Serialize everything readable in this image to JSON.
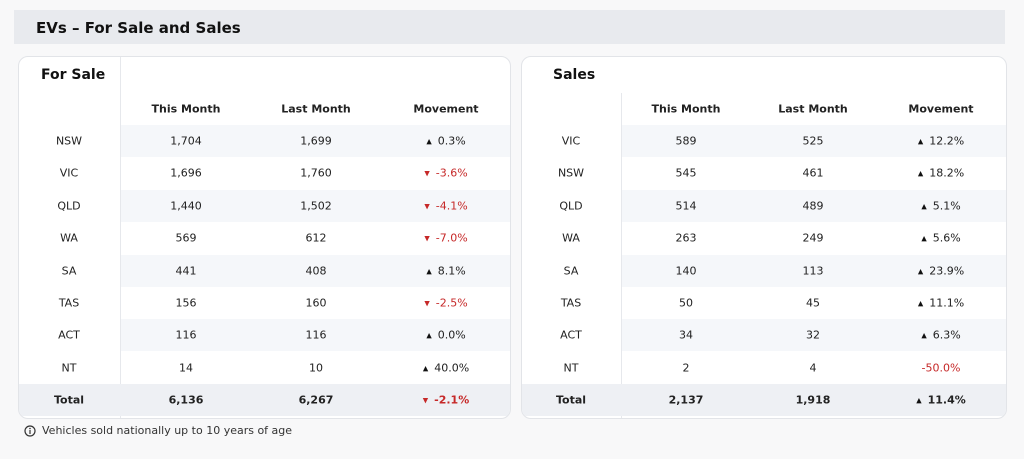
{
  "header": {
    "title": "EVs – For Sale and Sales"
  },
  "tables": [
    {
      "title": "For Sale",
      "columns": [
        "This Month",
        "Last Month",
        "Movement"
      ],
      "rows": [
        [
          "NSW",
          "1,704",
          "1,699",
          "0.3%"
        ],
        [
          "VIC",
          "1,696",
          "1,760",
          "-3.6%"
        ],
        [
          "QLD",
          "1,440",
          "1,502",
          "-4.1%"
        ],
        [
          "WA",
          "569",
          "612",
          "-7.0%"
        ],
        [
          "SA",
          "441",
          "408",
          "8.1%"
        ],
        [
          "TAS",
          "156",
          "160",
          "-2.5%"
        ],
        [
          "ACT",
          "116",
          "116",
          "0.0%"
        ],
        [
          "NT",
          "14",
          "10",
          "40.0%"
        ]
      ],
      "trends": [
        "up",
        "down",
        "down",
        "down",
        "up",
        "down",
        "up",
        "up"
      ],
      "total": [
        "Total",
        "6,136",
        "6,267",
        "-2.1%"
      ],
      "total_trend": "down"
    },
    {
      "title": "Sales",
      "columns": [
        "This Month",
        "Last Month",
        "Movement"
      ],
      "rows": [
        [
          "VIC",
          "589",
          "525",
          "12.2%"
        ],
        [
          "NSW",
          "545",
          "461",
          "18.2%"
        ],
        [
          "QLD",
          "514",
          "489",
          "5.1%"
        ],
        [
          "WA",
          "263",
          "249",
          "5.6%"
        ],
        [
          "SA",
          "140",
          "113",
          "23.9%"
        ],
        [
          "TAS",
          "50",
          "45",
          "11.1%"
        ],
        [
          "ACT",
          "34",
          "32",
          "6.3%"
        ],
        [
          "NT",
          "2",
          "4",
          "-50.0%"
        ]
      ],
      "trends": [
        "up",
        "up",
        "up",
        "up",
        "up",
        "up",
        "up",
        "none-down"
      ],
      "total": [
        "Total",
        "2,137",
        "1,918",
        "11.4%"
      ],
      "total_trend": "up"
    }
  ],
  "footnote": "Vehicles sold nationally up to 10 years of age"
}
